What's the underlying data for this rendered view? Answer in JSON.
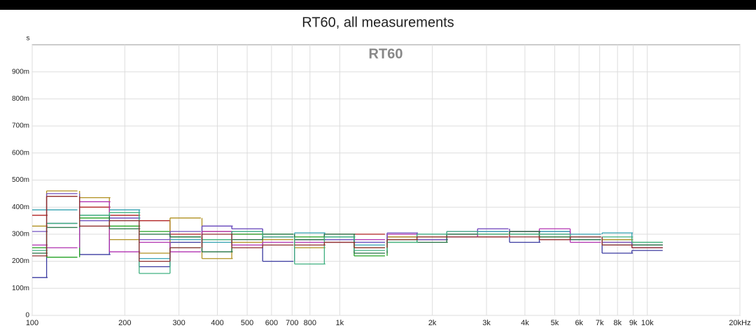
{
  "chart_data": {
    "type": "step",
    "title": "RT60, all measurements",
    "annotation": "RT60",
    "y_label": "s",
    "x_scale": "log",
    "grid": true,
    "xlim": [
      100,
      20000
    ],
    "ylim": [
      0,
      1
    ],
    "xticks": [
      100,
      200,
      300,
      400,
      500,
      600,
      700,
      800,
      {
        "value": 1000,
        "label": "1k"
      },
      {
        "value": 2000,
        "label": "2k"
      },
      {
        "value": 3000,
        "label": "3k"
      },
      {
        "value": 4000,
        "label": "4k"
      },
      {
        "value": 5000,
        "label": "5k"
      },
      {
        "value": 6000,
        "label": "6k"
      },
      {
        "value": 7000,
        "label": "7k"
      },
      {
        "value": 8000,
        "label": "8k"
      },
      {
        "value": 9000,
        "label": "9k"
      },
      {
        "value": 10000,
        "label": "10k"
      },
      {
        "value": 20000,
        "label": "20kHz"
      }
    ],
    "yticks": [
      0,
      {
        "value": 0.1,
        "label": "100m"
      },
      {
        "value": 0.2,
        "label": "200m"
      },
      {
        "value": 0.3,
        "label": "300m"
      },
      {
        "value": 0.4,
        "label": "400m"
      },
      {
        "value": 0.5,
        "label": "500m"
      },
      {
        "value": 0.6,
        "label": "600m"
      },
      {
        "value": 0.7,
        "label": "700m"
      },
      {
        "value": 0.8,
        "label": "800m"
      },
      {
        "value": 0.9,
        "label": "900m"
      }
    ],
    "x": [
      100,
      125,
      160,
      200,
      250,
      315,
      400,
      500,
      630,
      800,
      1000,
      1250,
      1600,
      2000,
      2500,
      3150,
      4000,
      5000,
      6300,
      8000,
      10000
    ],
    "series": [
      {
        "color": "#3a3aa0",
        "values": [
          0.14,
          0.34,
          0.225,
          0.36,
          0.18,
          0.27,
          0.33,
          0.32,
          0.2,
          0.28,
          0.28,
          0.27,
          0.29,
          0.28,
          0.3,
          0.31,
          0.27,
          0.31,
          0.28,
          0.23,
          0.24
        ]
      },
      {
        "color": "#b02020",
        "values": [
          0.37,
          0.44,
          0.4,
          0.37,
          0.35,
          0.3,
          0.31,
          0.3,
          0.29,
          0.28,
          0.3,
          0.3,
          0.29,
          0.28,
          0.3,
          0.29,
          0.3,
          0.28,
          0.29,
          0.27,
          0.25
        ]
      },
      {
        "color": "#20a020",
        "values": [
          0.25,
          0.215,
          0.36,
          0.33,
          0.31,
          0.29,
          0.28,
          0.3,
          0.3,
          0.29,
          0.29,
          0.22,
          0.27,
          0.28,
          0.29,
          0.3,
          0.3,
          0.3,
          0.29,
          0.28,
          0.27
        ]
      },
      {
        "color": "#30a0b0",
        "values": [
          0.39,
          0.39,
          0.37,
          0.39,
          0.21,
          0.28,
          0.27,
          0.31,
          0.29,
          0.305,
          0.29,
          0.26,
          0.28,
          0.3,
          0.3,
          0.31,
          0.3,
          0.31,
          0.3,
          0.305,
          0.26
        ]
      },
      {
        "color": "#b09020",
        "values": [
          0.33,
          0.46,
          0.435,
          0.28,
          0.23,
          0.36,
          0.21,
          0.27,
          0.28,
          0.25,
          0.27,
          0.25,
          0.29,
          0.29,
          0.29,
          0.3,
          0.31,
          0.29,
          0.29,
          0.28,
          0.26
        ]
      },
      {
        "color": "#b030b0",
        "values": [
          0.26,
          0.25,
          0.42,
          0.235,
          0.27,
          0.235,
          0.31,
          0.26,
          0.27,
          0.27,
          0.27,
          0.28,
          0.3,
          0.28,
          0.29,
          0.32,
          0.31,
          0.32,
          0.27,
          0.26,
          0.25
        ]
      },
      {
        "color": "#7050c0",
        "values": [
          0.31,
          0.45,
          0.35,
          0.36,
          0.28,
          0.31,
          0.33,
          0.32,
          0.29,
          0.28,
          0.28,
          0.27,
          0.305,
          0.28,
          0.31,
          0.32,
          0.31,
          0.3,
          0.29,
          0.27,
          0.26
        ]
      },
      {
        "color": "#207040",
        "values": [
          0.23,
          0.325,
          0.37,
          0.32,
          0.3,
          0.29,
          0.235,
          0.28,
          0.3,
          0.28,
          0.3,
          0.23,
          0.28,
          0.27,
          0.3,
          0.3,
          0.31,
          0.29,
          0.28,
          0.26,
          0.26
        ]
      },
      {
        "color": "#40b080",
        "values": [
          0.24,
          0.34,
          0.37,
          0.38,
          0.155,
          0.25,
          0.28,
          0.31,
          0.29,
          0.19,
          0.29,
          0.24,
          0.27,
          0.3,
          0.31,
          0.3,
          0.3,
          0.3,
          0.29,
          0.29,
          0.27
        ]
      },
      {
        "color": "#903030",
        "values": [
          0.22,
          0.44,
          0.33,
          0.35,
          0.2,
          0.25,
          0.3,
          0.25,
          0.26,
          0.26,
          0.27,
          0.25,
          0.28,
          0.29,
          0.29,
          0.29,
          0.29,
          0.28,
          0.29,
          0.26,
          0.25
        ]
      }
    ]
  }
}
